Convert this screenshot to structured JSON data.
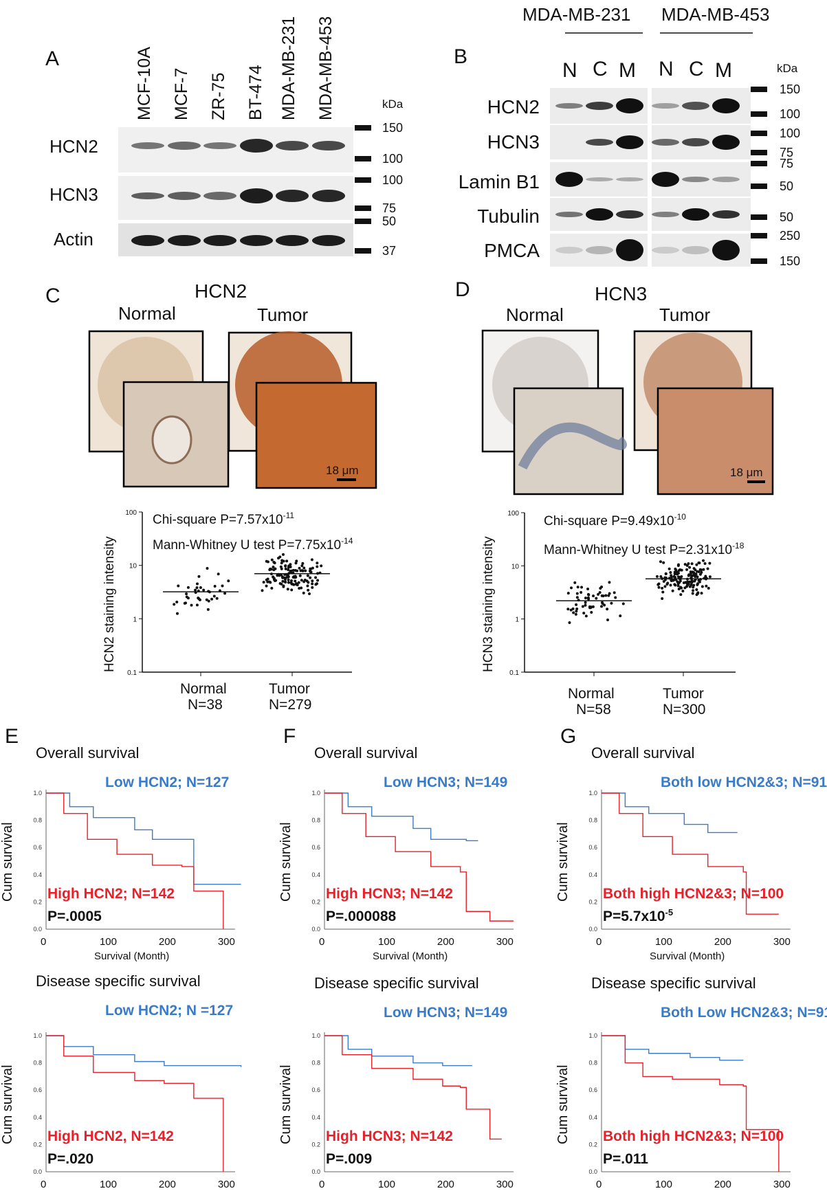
{
  "panelA": {
    "letter": "A",
    "cell_lines": [
      "MCF-10A",
      "MCF-7",
      "ZR-75",
      "BT-474",
      "MDA-MB-231",
      "MDA-MB-453"
    ],
    "rows": [
      "HCN2",
      "HCN3",
      "Actin"
    ],
    "kda_label": "kDa",
    "markers": [
      "150",
      "100",
      "100",
      "75",
      "50",
      "37"
    ]
  },
  "panelB": {
    "letter": "B",
    "groups": [
      "MDA-MB-231",
      "MDA-MB-453"
    ],
    "lanes": [
      "N",
      "C",
      "M",
      "N",
      "C",
      "M"
    ],
    "rows": [
      "HCN2",
      "HCN3",
      "Lamin B1",
      "Tubulin",
      "PMCA"
    ],
    "kda_label": "kDa",
    "markers": [
      "150",
      "100",
      "100",
      "75",
      "75",
      "50",
      "50",
      "250",
      "150"
    ]
  },
  "panelC": {
    "letter": "C",
    "title": "HCN2",
    "normal_label": "Normal",
    "tumor_label": "Tumor",
    "scale": "18 μm",
    "chi": "Chi-square P=7.57x10",
    "chi_exp": "-11",
    "mw": "Mann-Whitney U test P=7.75x10",
    "mw_exp": "-14",
    "ylabel": "HCN2 staining intensity",
    "yticks": [
      "100",
      "10",
      "1",
      "0.1"
    ],
    "groups": [
      {
        "name": "Normal",
        "n": "N=38"
      },
      {
        "name": "Tumor",
        "n": "N=279"
      }
    ]
  },
  "panelD": {
    "letter": "D",
    "title": "HCN3",
    "normal_label": "Normal",
    "tumor_label": "Tumor",
    "scale": "18 μm",
    "chi": "Chi-square P=9.49x10",
    "chi_exp": "-10",
    "mw": "Mann-Whitney U test P=2.31x10",
    "mw_exp": "-18",
    "ylabel": "HCN3 staining intensity",
    "yticks": [
      "100",
      "10",
      "1",
      "0.1"
    ],
    "groups": [
      {
        "name": "Normal",
        "n": "N=58"
      },
      {
        "name": "Tumor",
        "n": "N=300"
      }
    ]
  },
  "survival": {
    "ylabel": "Cum survival",
    "xlabel": "Survival (Month)",
    "xticks": [
      "0",
      "100",
      "200",
      "300"
    ],
    "yticks": [
      "1.0",
      "0.8",
      "0.6",
      "0.4",
      "0.2",
      "0.0"
    ],
    "panels": [
      {
        "letter": "E",
        "title": "Overall survival",
        "low": "Low HCN2; N=127",
        "high": "High HCN2; N=142",
        "p": "P=.0005"
      },
      {
        "letter": "F",
        "title": "Overall survival",
        "low": "Low  HCN3; N=149",
        "high": "High HCN3; N=142",
        "p": "P=.000088"
      },
      {
        "letter": "G",
        "title": "Overall survival",
        "low": "Both low HCN2&3; N=91",
        "high": "Both high HCN2&3; N=100",
        "p": "P=5.7x10",
        "p_exp": "-5"
      },
      {
        "letter": "",
        "title": "Disease specific survival",
        "low": "Low HCN2; N =127",
        "high": "High HCN2, N=142",
        "p": "P=.020"
      },
      {
        "letter": "",
        "title": "Disease specific survival",
        "low": "Low HCN3; N=149",
        "high": "High HCN3; N=142",
        "p": "P=.009"
      },
      {
        "letter": "",
        "title": "Disease specific survival",
        "low": "Both Low HCN2&3; N=91",
        "high": "Both high HCN2&3; N=100",
        "p": "P=.011"
      }
    ]
  },
  "colors": {
    "low": "#3a7bc8",
    "high": "#e8202a"
  }
}
